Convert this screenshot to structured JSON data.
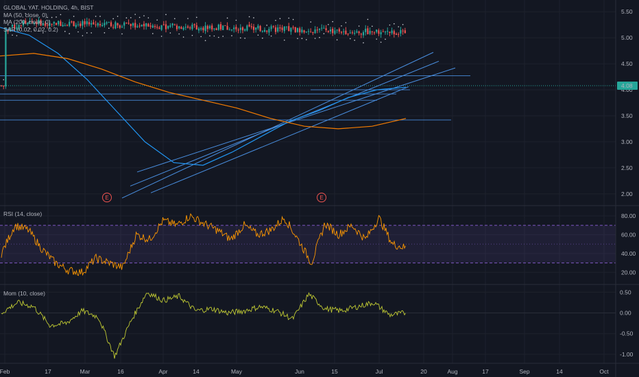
{
  "colors": {
    "background": "#131722",
    "grid": "#1e222d",
    "pane_border": "#2a2e39",
    "candle_up": "#26a69a",
    "candle_down": "#ef5350",
    "ma50": "#2196f3",
    "ma200": "#f57c00",
    "sar": "#cfd2d8",
    "trendline": "#4a90e2",
    "rsi": "#ff9800",
    "rsi_band": "#7e57c2",
    "mom": "#c0ca33",
    "price_tag": "#26a69a",
    "earnings": "#ef5350"
  },
  "chart_data": [
    {
      "type": "candlestick",
      "title": "GLOBAL YAT. HOLDING, 4h, BIST",
      "legend_lines": [
        "GLOBAL YAT. HOLDING, 4h, BIST",
        "MA (50, close, 0)",
        "MA (200, close, 0)",
        "SAR (0.02, 0.02, 0.2)"
      ],
      "x_ticks": [
        "Feb",
        "17",
        "Mar",
        "16",
        "Apr",
        "14",
        "May",
        "Jun",
        "15",
        "Jul",
        "20",
        "Aug",
        "17",
        "Sep",
        "14",
        "Oct"
      ],
      "y_ticks": [
        "5.50",
        "5.00",
        "4.50",
        "4.00",
        "3.50",
        "3.00",
        "2.50",
        "2.00"
      ],
      "ylim": [
        1.8,
        5.7
      ],
      "last_price": "4.08",
      "earnings_markers": [
        "E",
        "E"
      ],
      "key_points": [
        {
          "x": "Feb",
          "y": 5.15
        },
        {
          "x": "Feb 10",
          "y": 5.3
        },
        {
          "x": "17",
          "y": 5.05
        },
        {
          "x": "Feb 24",
          "y": 4.55
        },
        {
          "x": "Mar",
          "y": 3.6
        },
        {
          "x": "Mar 9",
          "y": 3.55
        },
        {
          "x": "16",
          "y": 3.05
        },
        {
          "x": "Mar 23",
          "y": 2.05
        },
        {
          "x": "Apr",
          "y": 2.45
        },
        {
          "x": "Apr 7",
          "y": 2.7
        },
        {
          "x": "14",
          "y": 3.0
        },
        {
          "x": "Apr 21",
          "y": 3.05
        },
        {
          "x": "May",
          "y": 3.45
        },
        {
          "x": "May 11",
          "y": 3.25
        },
        {
          "x": "May 18",
          "y": 3.45
        },
        {
          "x": "Jun",
          "y": 3.8
        },
        {
          "x": "Jun 8",
          "y": 3.4
        },
        {
          "x": "15",
          "y": 3.95
        },
        {
          "x": "Jun 22",
          "y": 4.05
        },
        {
          "x": "Jul",
          "y": 4.25
        },
        {
          "x": "Jul 6",
          "y": 4.3
        },
        {
          "x": "Jul 13",
          "y": 4.08
        }
      ],
      "series": [
        {
          "name": "MA (50, close, 0)",
          "values": [
            5.2,
            5.05,
            4.7,
            4.2,
            3.6,
            3.0,
            2.6,
            2.55,
            2.8,
            3.1,
            3.4,
            3.6,
            3.85,
            4.0,
            4.05
          ]
        },
        {
          "name": "MA (200, close, 0)",
          "values": [
            4.65,
            4.7,
            4.6,
            4.4,
            4.15,
            3.95,
            3.8,
            3.65,
            3.45,
            3.3,
            3.25,
            3.3,
            3.45
          ]
        }
      ]
    },
    {
      "type": "line",
      "title": "RSI (14, close)",
      "y_ticks": [
        "80.00",
        "60.00",
        "40.00",
        "20.00"
      ],
      "ylim": [
        10,
        88
      ],
      "band": [
        30,
        70
      ],
      "values": [
        40,
        70,
        65,
        45,
        30,
        22,
        20,
        35,
        30,
        25,
        60,
        55,
        75,
        70,
        80,
        72,
        65,
        55,
        70,
        60,
        65,
        78,
        55,
        30,
        72,
        60,
        70,
        55,
        78,
        50,
        46
      ]
    },
    {
      "type": "line",
      "title": "Mom (10, close)",
      "y_ticks": [
        "0.50",
        "0.00",
        "-0.50",
        "-1.00"
      ],
      "ylim": [
        -1.15,
        0.62
      ],
      "values": [
        0.0,
        0.25,
        0.15,
        -0.3,
        -0.25,
        0.05,
        -0.1,
        -1.05,
        -0.2,
        0.5,
        0.3,
        0.4,
        0.05,
        0.1,
        0.0,
        0.05,
        0.15,
        0.05,
        -0.15,
        0.45,
        0.1,
        0.05,
        0.15,
        0.25,
        -0.05,
        0.0
      ]
    }
  ]
}
